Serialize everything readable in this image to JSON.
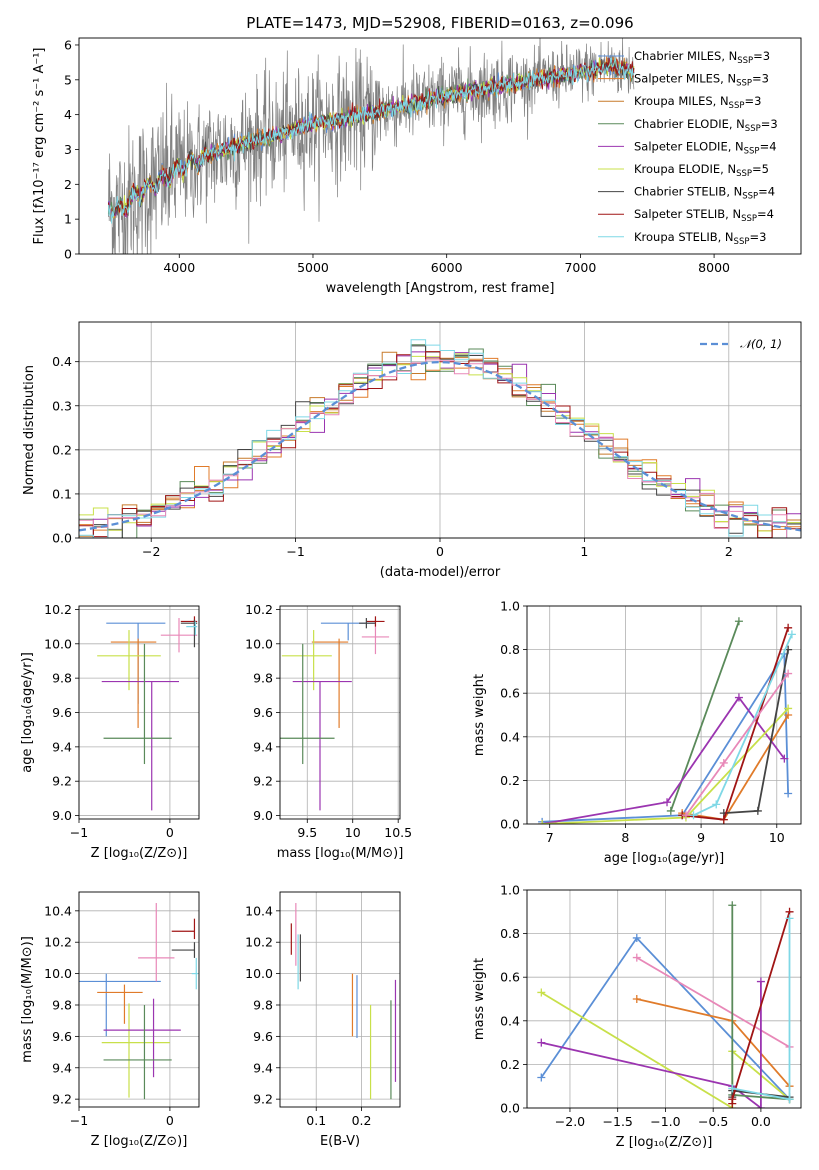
{
  "colors": [
    "#5b8fd6",
    "#e07b2a",
    "#c77a2a",
    "#5a8a5a",
    "#9b35b0",
    "#c8e04a",
    "#444444",
    "#a01515",
    "#7fd8e6",
    "#e888b8"
  ],
  "chart_data": [
    {
      "id": "spectrum",
      "type": "line",
      "title": "PLATE=1473, MJD=52908, FIBERID=0163, z=0.096",
      "xlabel": "wavelength [Angstrom, rest frame]",
      "ylabel": "Flux [fλ10⁻¹⁷ erg cm⁻² s⁻¹ A⁻¹]",
      "xlim": [
        3250,
        8650
      ],
      "ylim": [
        0,
        6.2
      ],
      "xticks": [
        4000,
        5000,
        6000,
        7000,
        8000
      ],
      "yticks": [
        0,
        1,
        2,
        3,
        4,
        5,
        6
      ],
      "legend_position": "upper right",
      "legend": [
        {
          "label": "Chabrier MILES, N_SSP=3",
          "color": "#5b8fd6"
        },
        {
          "label": "Salpeter MILES, N_SSP=3",
          "color": "#e07b2a"
        },
        {
          "label": "Kroupa MILES, N_SSP=3",
          "color": "#c77a2a"
        },
        {
          "label": "Chabrier ELODIE, N_SSP=3",
          "color": "#5a8a5a"
        },
        {
          "label": "Salpeter ELODIE, N_SSP=4",
          "color": "#9b35b0"
        },
        {
          "label": "Kroupa ELODIE, N_SSP=5",
          "color": "#c8e04a"
        },
        {
          "label": "Chabrier STELIB, N_SSP=4",
          "color": "#444444"
        },
        {
          "label": "Salpeter STELIB, N_SSP=4",
          "color": "#a01515"
        },
        {
          "label": "Kroupa STELIB, N_SSP=3",
          "color": "#7fd8e6"
        }
      ],
      "model_continuum": [
        [
          3470,
          1.4
        ],
        [
          3550,
          1.25
        ],
        [
          3650,
          1.6
        ],
        [
          3750,
          1.9
        ],
        [
          3900,
          2.2
        ],
        [
          4000,
          2.45
        ],
        [
          4200,
          2.8
        ],
        [
          4500,
          3.2
        ],
        [
          4800,
          3.5
        ],
        [
          5000,
          3.75
        ],
        [
          5200,
          3.85
        ],
        [
          5500,
          4.1
        ],
        [
          5800,
          4.35
        ],
        [
          6000,
          4.55
        ],
        [
          6300,
          4.75
        ],
        [
          6500,
          4.9
        ],
        [
          6800,
          5.1
        ],
        [
          7000,
          5.2
        ],
        [
          7200,
          5.4
        ],
        [
          7400,
          5.25
        ]
      ],
      "data_noise_amplitude": 1.2
    },
    {
      "id": "residuals",
      "type": "histogram",
      "xlabel": "(data-model)/error",
      "ylabel": "Normed distribution",
      "xlim": [
        -2.5,
        2.5
      ],
      "ylim": [
        0,
        0.49
      ],
      "xticks": [
        -2,
        -1,
        0,
        1,
        2
      ],
      "yticks": [
        0.0,
        0.1,
        0.2,
        0.3,
        0.4
      ],
      "legend_position": "upper right",
      "reference_curve": {
        "label": "𝒩(0, 1)",
        "mean": 0,
        "std": 1,
        "color": "#5b8fd6"
      },
      "bin_width": 0.1,
      "series_count": 9
    },
    {
      "id": "age-vs-Z",
      "type": "errorbar",
      "xlabel": "Z [log₁₀(Z/Z⊙)]",
      "ylabel": "age  [log₁₀(age/yr)]",
      "xlim": [
        -1.0,
        0.32
      ],
      "ylim": [
        8.98,
        10.22
      ],
      "xticks": [
        -1,
        0
      ],
      "xtick_labels": [
        "−1",
        "0"
      ],
      "yticks": [
        9.0,
        9.2,
        9.4,
        9.6,
        9.8,
        10.0,
        10.2
      ],
      "points": [
        {
          "x": -0.35,
          "xerr": [
            0.35,
            0.3
          ],
          "y": 10.12,
          "yerr": [
            0.47,
            0.0
          ],
          "color": "#5b8fd6"
        },
        {
          "x": -0.35,
          "xerr": [
            0.3,
            0.2
          ],
          "y": 10.01,
          "yerr": [
            0.5,
            0.02
          ],
          "color": "#e07b2a"
        },
        {
          "x": 0.1,
          "xerr": [
            0.2,
            0.2
          ],
          "y": 10.05,
          "yerr": [
            0.1,
            0.1
          ],
          "color": "#e888b8"
        },
        {
          "x": -0.45,
          "xerr": [
            0.35,
            0.35
          ],
          "y": 9.93,
          "yerr": [
            0.2,
            0.15
          ],
          "color": "#c8e04a"
        },
        {
          "x": -0.2,
          "xerr": [
            0.55,
            0.3
          ],
          "y": 9.78,
          "yerr": [
            0.75,
            0.0
          ],
          "color": "#9b35b0"
        },
        {
          "x": -0.28,
          "xerr": [
            0.45,
            0.3
          ],
          "y": 9.45,
          "yerr": [
            0.15,
            0.55
          ],
          "color": "#5a8a5a"
        },
        {
          "x": 0.27,
          "xerr": [
            0.15,
            0.03
          ],
          "y": 10.13,
          "yerr": [
            0.03,
            0.03
          ],
          "color": "#a01515"
        },
        {
          "x": 0.27,
          "xerr": [
            0.15,
            0.03
          ],
          "y": 10.12,
          "yerr": [
            0.14,
            0.02
          ],
          "color": "#444444"
        },
        {
          "x": 0.28,
          "xerr": [
            0.1,
            0.02
          ],
          "y": 10.1,
          "yerr": [
            0.05,
            0.03
          ],
          "color": "#7fd8e6"
        }
      ]
    },
    {
      "id": "age-vs-mass",
      "type": "errorbar",
      "xlabel": "mass [log₁₀(M/M⊙)]",
      "ylabel": "",
      "xlim": [
        9.2,
        10.52
      ],
      "ylim": [
        8.98,
        10.22
      ],
      "xticks": [
        9.5,
        10.0,
        10.5
      ],
      "yticks": [
        9.0,
        9.2,
        9.4,
        9.6,
        9.8,
        10.0,
        10.2
      ],
      "points": [
        {
          "x": 9.95,
          "xerr": [
            0.3,
            0.3
          ],
          "y": 10.12,
          "yerr": [
            0.1,
            0.0
          ],
          "color": "#5b8fd6"
        },
        {
          "x": 9.85,
          "xerr": [
            0.3,
            0.1
          ],
          "y": 10.01,
          "yerr": [
            0.5,
            0.02
          ],
          "color": "#e07b2a"
        },
        {
          "x": 10.25,
          "xerr": [
            0.15,
            0.15
          ],
          "y": 10.04,
          "yerr": [
            0.1,
            0.1
          ],
          "color": "#e888b8"
        },
        {
          "x": 9.57,
          "xerr": [
            0.35,
            0.2
          ],
          "y": 9.93,
          "yerr": [
            0.2,
            0.15
          ],
          "color": "#c8e04a"
        },
        {
          "x": 9.64,
          "xerr": [
            0.3,
            0.35
          ],
          "y": 9.78,
          "yerr": [
            0.75,
            0.0
          ],
          "color": "#9b35b0"
        },
        {
          "x": 9.45,
          "xerr": [
            0.3,
            0.35
          ],
          "y": 9.45,
          "yerr": [
            0.15,
            0.55
          ],
          "color": "#5a8a5a"
        },
        {
          "x": 10.25,
          "xerr": [
            0.1,
            0.1
          ],
          "y": 10.13,
          "yerr": [
            0.03,
            0.03
          ],
          "color": "#a01515"
        },
        {
          "x": 10.15,
          "xerr": [
            0.08,
            0.1
          ],
          "y": 10.12,
          "yerr": [
            0.03,
            0.03
          ],
          "color": "#444444"
        }
      ]
    },
    {
      "id": "mass-weight-vs-age",
      "type": "line",
      "xlabel": "age  [log₁₀(age/yr)]",
      "ylabel": "mass weight",
      "xlim": [
        6.7,
        10.32
      ],
      "ylim": [
        0,
        1.0
      ],
      "xticks": [
        7,
        8,
        9,
        10
      ],
      "yticks": [
        0.0,
        0.2,
        0.4,
        0.6,
        0.8,
        1.0
      ],
      "series": [
        {
          "color": "#5b8fd6",
          "points": [
            [
              6.9,
              0.01
            ],
            [
              8.75,
              0.04
            ],
            [
              10.1,
              0.78
            ],
            [
              10.15,
              0.14
            ]
          ]
        },
        {
          "color": "#e07b2a",
          "points": [
            [
              8.75,
              0.05
            ],
            [
              9.3,
              0.02
            ],
            [
              10.15,
              0.5
            ]
          ]
        },
        {
          "color": "#5a8a5a",
          "points": [
            [
              8.6,
              0.06
            ],
            [
              9.5,
              0.93
            ]
          ]
        },
        {
          "color": "#9b35b0",
          "points": [
            [
              6.9,
              0.0
            ],
            [
              8.55,
              0.1
            ],
            [
              9.5,
              0.58
            ],
            [
              10.1,
              0.3
            ]
          ]
        },
        {
          "color": "#c8e04a",
          "points": [
            [
              6.9,
              0.0
            ],
            [
              8.8,
              0.03
            ],
            [
              10.15,
              0.53
            ]
          ]
        },
        {
          "color": "#444444",
          "points": [
            [
              9.3,
              0.05
            ],
            [
              9.75,
              0.06
            ],
            [
              10.15,
              0.8
            ]
          ]
        },
        {
          "color": "#a01515",
          "points": [
            [
              8.75,
              0.04
            ],
            [
              9.3,
              0.02
            ],
            [
              10.15,
              0.9
            ]
          ]
        },
        {
          "color": "#7fd8e6",
          "points": [
            [
              8.9,
              0.04
            ],
            [
              9.2,
              0.09
            ],
            [
              10.2,
              0.87
            ]
          ]
        },
        {
          "color": "#e888b8",
          "points": [
            [
              8.8,
              0.04
            ],
            [
              9.3,
              0.28
            ],
            [
              10.15,
              0.69
            ]
          ]
        }
      ]
    },
    {
      "id": "mass-vs-Z",
      "type": "errorbar",
      "xlabel": "Z [log₁₀(Z/Z⊙)]",
      "ylabel": "mass [log₁₀(M/M⊙)]",
      "xlim": [
        -1.0,
        0.32
      ],
      "ylim": [
        9.15,
        10.52
      ],
      "xticks": [
        -1,
        0
      ],
      "xtick_labels": [
        "−1",
        "0"
      ],
      "yticks": [
        9.2,
        9.4,
        9.6,
        9.8,
        10.0,
        10.2,
        10.4
      ],
      "points": [
        {
          "x": -0.7,
          "xerr": [
            0.3,
            0.6
          ],
          "y": 9.95,
          "yerr": [
            0.35,
            0.05
          ],
          "color": "#5b8fd6"
        },
        {
          "x": -0.5,
          "xerr": [
            0.3,
            0.2
          ],
          "y": 9.88,
          "yerr": [
            0.2,
            0.05
          ],
          "color": "#e07b2a"
        },
        {
          "x": -0.15,
          "xerr": [
            0.2,
            0.2
          ],
          "y": 10.1,
          "yerr": [
            0.15,
            0.35
          ],
          "color": "#e888b8"
        },
        {
          "x": -0.45,
          "xerr": [
            0.3,
            0.45
          ],
          "y": 9.56,
          "yerr": [
            0.35,
            0.25
          ],
          "color": "#c8e04a"
        },
        {
          "x": -0.18,
          "xerr": [
            0.55,
            0.3
          ],
          "y": 9.64,
          "yerr": [
            0.3,
            0.2
          ],
          "color": "#9b35b0"
        },
        {
          "x": -0.28,
          "xerr": [
            0.45,
            0.3
          ],
          "y": 9.45,
          "yerr": [
            0.25,
            0.35
          ],
          "color": "#5a8a5a"
        },
        {
          "x": 0.27,
          "xerr": [
            0.25,
            0.0
          ],
          "y": 10.27,
          "yerr": [
            0.05,
            0.08
          ],
          "color": "#a01515"
        },
        {
          "x": 0.27,
          "xerr": [
            0.25,
            0.0
          ],
          "y": 10.15,
          "yerr": [
            0.05,
            0.05
          ],
          "color": "#444444"
        },
        {
          "x": 0.29,
          "xerr": [
            0.05,
            0.02
          ],
          "y": 10.0,
          "yerr": [
            0.1,
            0.1
          ],
          "color": "#7fd8e6"
        }
      ]
    },
    {
      "id": "mass-vs-ebv",
      "type": "errorbar",
      "xlabel": "E(B-V)",
      "ylabel": "",
      "xlim": [
        0.02,
        0.285
      ],
      "ylim": [
        9.15,
        10.52
      ],
      "xticks": [
        0.1,
        0.2
      ],
      "yticks": [
        9.2,
        9.4,
        9.6,
        9.8,
        10.0,
        10.2,
        10.4
      ],
      "points": [
        {
          "x": 0.045,
          "y": 10.22,
          "yerr": [
            0.1,
            0.1
          ],
          "color": "#a01515"
        },
        {
          "x": 0.055,
          "y": 10.25,
          "yerr": [
            0.2,
            0.2
          ],
          "color": "#e888b8"
        },
        {
          "x": 0.06,
          "y": 10.1,
          "yerr": [
            0.2,
            0.15
          ],
          "color": "#7fd8e6"
        },
        {
          "x": 0.065,
          "y": 10.1,
          "yerr": [
            0.15,
            0.15
          ],
          "color": "#444444"
        },
        {
          "x": 0.18,
          "y": 9.8,
          "yerr": [
            0.2,
            0.2
          ],
          "color": "#e07b2a"
        },
        {
          "x": 0.19,
          "y": 9.79,
          "yerr": [
            0.2,
            0.2
          ],
          "color": "#5b8fd6"
        },
        {
          "x": 0.22,
          "y": 9.55,
          "yerr": [
            0.35,
            0.25
          ],
          "color": "#c8e04a"
        },
        {
          "x": 0.265,
          "y": 9.5,
          "yerr": [
            0.3,
            0.33
          ],
          "color": "#5a8a5a"
        },
        {
          "x": 0.275,
          "y": 9.64,
          "yerr": [
            0.33,
            0.32
          ],
          "color": "#9b35b0"
        }
      ]
    },
    {
      "id": "mass-weight-vs-Z",
      "type": "line",
      "xlabel": "Z [log₁₀(Z/Z⊙)]",
      "ylabel": "mass weight",
      "xlim": [
        -2.45,
        0.42
      ],
      "ylim": [
        0,
        1.0
      ],
      "xticks": [
        -2.0,
        -1.5,
        -1.0,
        -0.5,
        0.0
      ],
      "xtick_labels": [
        "−2.0",
        "−1.5",
        "−1.0",
        "−0.5",
        "0.0"
      ],
      "yticks": [
        0.0,
        0.2,
        0.4,
        0.6,
        0.8,
        1.0
      ],
      "series": [
        {
          "color": "#5b8fd6",
          "points": [
            [
              -2.3,
              0.14
            ],
            [
              -1.3,
              0.78
            ],
            [
              0.3,
              0.04
            ]
          ]
        },
        {
          "color": "#e07b2a",
          "points": [
            [
              -1.3,
              0.5
            ],
            [
              -0.3,
              0.4
            ],
            [
              0.3,
              0.1
            ]
          ]
        },
        {
          "color": "#e888b8",
          "points": [
            [
              -1.3,
              0.69
            ],
            [
              0.3,
              0.28
            ]
          ]
        },
        {
          "color": "#c8e04a",
          "points": [
            [
              -2.3,
              0.53
            ],
            [
              -0.3,
              0.0
            ],
            [
              -0.3,
              0.26
            ],
            [
              0.3,
              0.04
            ]
          ]
        },
        {
          "color": "#9b35b0",
          "points": [
            [
              -2.3,
              0.3
            ],
            [
              -0.3,
              0.1
            ],
            [
              0.0,
              0.0
            ],
            [
              0.0,
              0.58
            ]
          ]
        },
        {
          "color": "#5a8a5a",
          "points": [
            [
              -0.3,
              0.93
            ],
            [
              -0.3,
              0.06
            ],
            [
              0.3,
              0.04
            ]
          ]
        },
        {
          "color": "#444444",
          "points": [
            [
              -0.3,
              0.05
            ],
            [
              -0.3,
              0.08
            ],
            [
              0.3,
              0.05
            ]
          ]
        },
        {
          "color": "#a01515",
          "points": [
            [
              -0.3,
              0.02
            ],
            [
              -0.3,
              0.04
            ],
            [
              0.3,
              0.9
            ]
          ]
        },
        {
          "color": "#7fd8e6",
          "points": [
            [
              -0.3,
              0.09
            ],
            [
              0.3,
              0.04
            ],
            [
              0.3,
              0.87
            ]
          ]
        }
      ]
    }
  ]
}
